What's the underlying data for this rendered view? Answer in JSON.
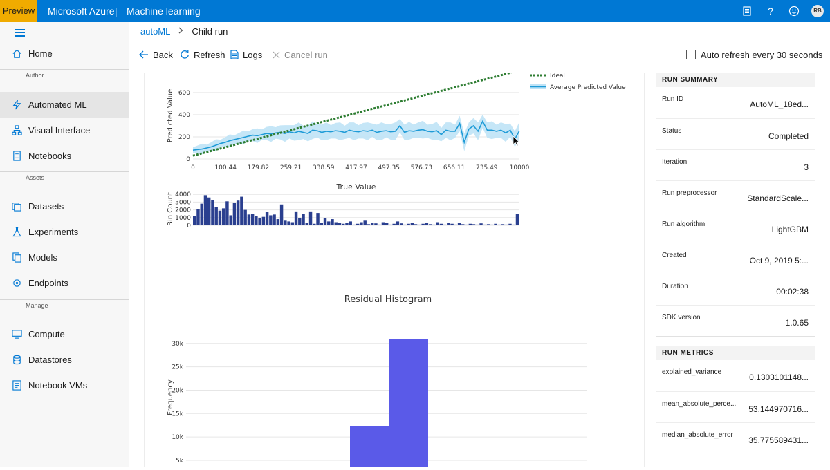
{
  "topbar": {
    "badge": "Preview",
    "brand": "Microsoft Azure",
    "separator": "|",
    "product": "Machine learning",
    "avatar_initials": "RB",
    "icons": [
      "feedback-doc-icon",
      "help-icon",
      "smiley-icon"
    ],
    "help_glyph": "?",
    "accent": "#0078d4",
    "badge_color": "#f0ab00"
  },
  "sidebar": {
    "items_top": [
      {
        "label": "Home",
        "icon": "home-icon"
      }
    ],
    "section_author": "Author",
    "items_author": [
      {
        "label": "Automated ML",
        "icon": "automated-ml-icon",
        "active": true
      },
      {
        "label": "Visual Interface",
        "icon": "visual-interface-icon"
      },
      {
        "label": "Notebooks",
        "icon": "notebook-icon"
      }
    ],
    "section_assets": "Assets",
    "items_assets": [
      {
        "label": "Datasets",
        "icon": "datasets-icon"
      },
      {
        "label": "Experiments",
        "icon": "experiments-icon"
      },
      {
        "label": "Models",
        "icon": "models-icon"
      },
      {
        "label": "Endpoints",
        "icon": "endpoints-icon"
      }
    ],
    "section_manage": "Manage",
    "items_manage": [
      {
        "label": "Compute",
        "icon": "compute-icon"
      },
      {
        "label": "Datastores",
        "icon": "datastores-icon"
      },
      {
        "label": "Notebook VMs",
        "icon": "notebook-vm-icon"
      }
    ]
  },
  "breadcrumb": {
    "parent": "autoML",
    "current": "Child run"
  },
  "toolbar": {
    "back": "Back",
    "refresh": "Refresh",
    "logs": "Logs",
    "cancel": "Cancel run",
    "auto_refresh": "Auto refresh every 30 seconds",
    "auto_refresh_checked": false
  },
  "run_summary": {
    "title": "RUN SUMMARY",
    "rows": [
      {
        "key": "Run ID",
        "value": "AutoML_18ed..."
      },
      {
        "key": "Status",
        "value": "Completed"
      },
      {
        "key": "Iteration",
        "value": "3"
      },
      {
        "key": "Run preprocessor",
        "value": "StandardScale..."
      },
      {
        "key": "Run algorithm",
        "value": "LightGBM"
      },
      {
        "key": "Created",
        "value": "Oct 9, 2019 5:..."
      },
      {
        "key": "Duration",
        "value": "00:02:38"
      },
      {
        "key": "SDK version",
        "value": "1.0.65"
      }
    ]
  },
  "run_metrics": {
    "title": "RUN METRICS",
    "rows": [
      {
        "key": "explained_variance",
        "value": "0.1303101148..."
      },
      {
        "key": "mean_absolute_perce...",
        "value": "53.144970716..."
      },
      {
        "key": "median_absolute_error",
        "value": "35.775589431..."
      }
    ]
  },
  "chart_data": [
    {
      "type": "line",
      "xlabel": "True Value",
      "ylabel": "Predicted Value",
      "x_ticks": [
        "0",
        "100.44",
        "179.82",
        "259.21",
        "338.59",
        "417.97",
        "497.35",
        "576.73",
        "656.11",
        "735.49",
        "10000"
      ],
      "y_ticks": [
        0,
        200,
        400,
        600
      ],
      "ylim": [
        0,
        780
      ],
      "legend_placement": "top-right",
      "series": [
        {
          "name": "Ideal",
          "style": "dotted",
          "color": "#2e7d32",
          "points": [
            [
              0,
              30
            ],
            [
              10,
              780
            ]
          ]
        },
        {
          "name": "Average Predicted Value",
          "style": "line-with-band",
          "color": "#1e9bd7",
          "band_color": "#bfe3f6",
          "values": [
            80,
            85,
            90,
            100,
            110,
            125,
            140,
            150,
            165,
            175,
            185,
            195,
            205,
            215,
            210,
            220,
            230,
            225,
            235,
            240,
            230,
            245,
            235,
            250,
            240,
            230,
            260,
            255,
            240,
            250,
            245,
            255,
            250,
            240,
            260,
            250,
            245,
            255,
            250,
            260,
            240,
            250,
            255,
            245,
            250,
            300,
            240,
            255,
            250,
            260,
            265,
            250,
            245,
            255,
            220,
            260,
            250,
            250,
            320,
            150,
            270,
            300,
            250,
            340,
            260,
            260,
            250,
            260,
            235,
            260,
            180,
            255
          ]
        }
      ]
    },
    {
      "type": "bar",
      "ylabel": "Bin Count",
      "y_ticks": [
        "0",
        "1000",
        "2000",
        "3000",
        "4000"
      ],
      "ylim": [
        0,
        4200
      ],
      "color": "#2a3f8f",
      "values": [
        1200,
        2100,
        2800,
        3900,
        3600,
        3300,
        2400,
        1900,
        2200,
        3100,
        1300,
        2900,
        3200,
        3700,
        2000,
        1400,
        1500,
        1200,
        900,
        1100,
        1700,
        1300,
        1400,
        800,
        2700,
        600,
        500,
        400,
        1800,
        900,
        1500,
        300,
        1800,
        200,
        1600,
        300,
        900,
        500,
        800,
        400,
        300,
        200,
        350,
        500,
        100,
        200,
        400,
        600,
        150,
        300,
        250,
        100,
        400,
        300,
        100,
        200,
        500,
        250,
        100,
        200,
        300,
        150,
        100,
        200,
        300,
        150,
        100,
        400,
        200,
        100,
        350,
        200,
        100,
        300,
        150,
        100,
        200,
        150,
        100,
        250,
        100,
        150,
        100,
        200,
        100,
        150,
        100,
        200,
        100,
        1500
      ]
    },
    {
      "type": "bar",
      "title": "Residual Histogram",
      "ylabel": "Frequency",
      "y_ticks": [
        "5k",
        "10k",
        "15k",
        "20k",
        "25k",
        "30k"
      ],
      "ylim": [
        5000,
        31000
      ],
      "color": "#5a5ae8",
      "bars": [
        {
          "value": 12300
        },
        {
          "value": 31000
        }
      ]
    }
  ]
}
